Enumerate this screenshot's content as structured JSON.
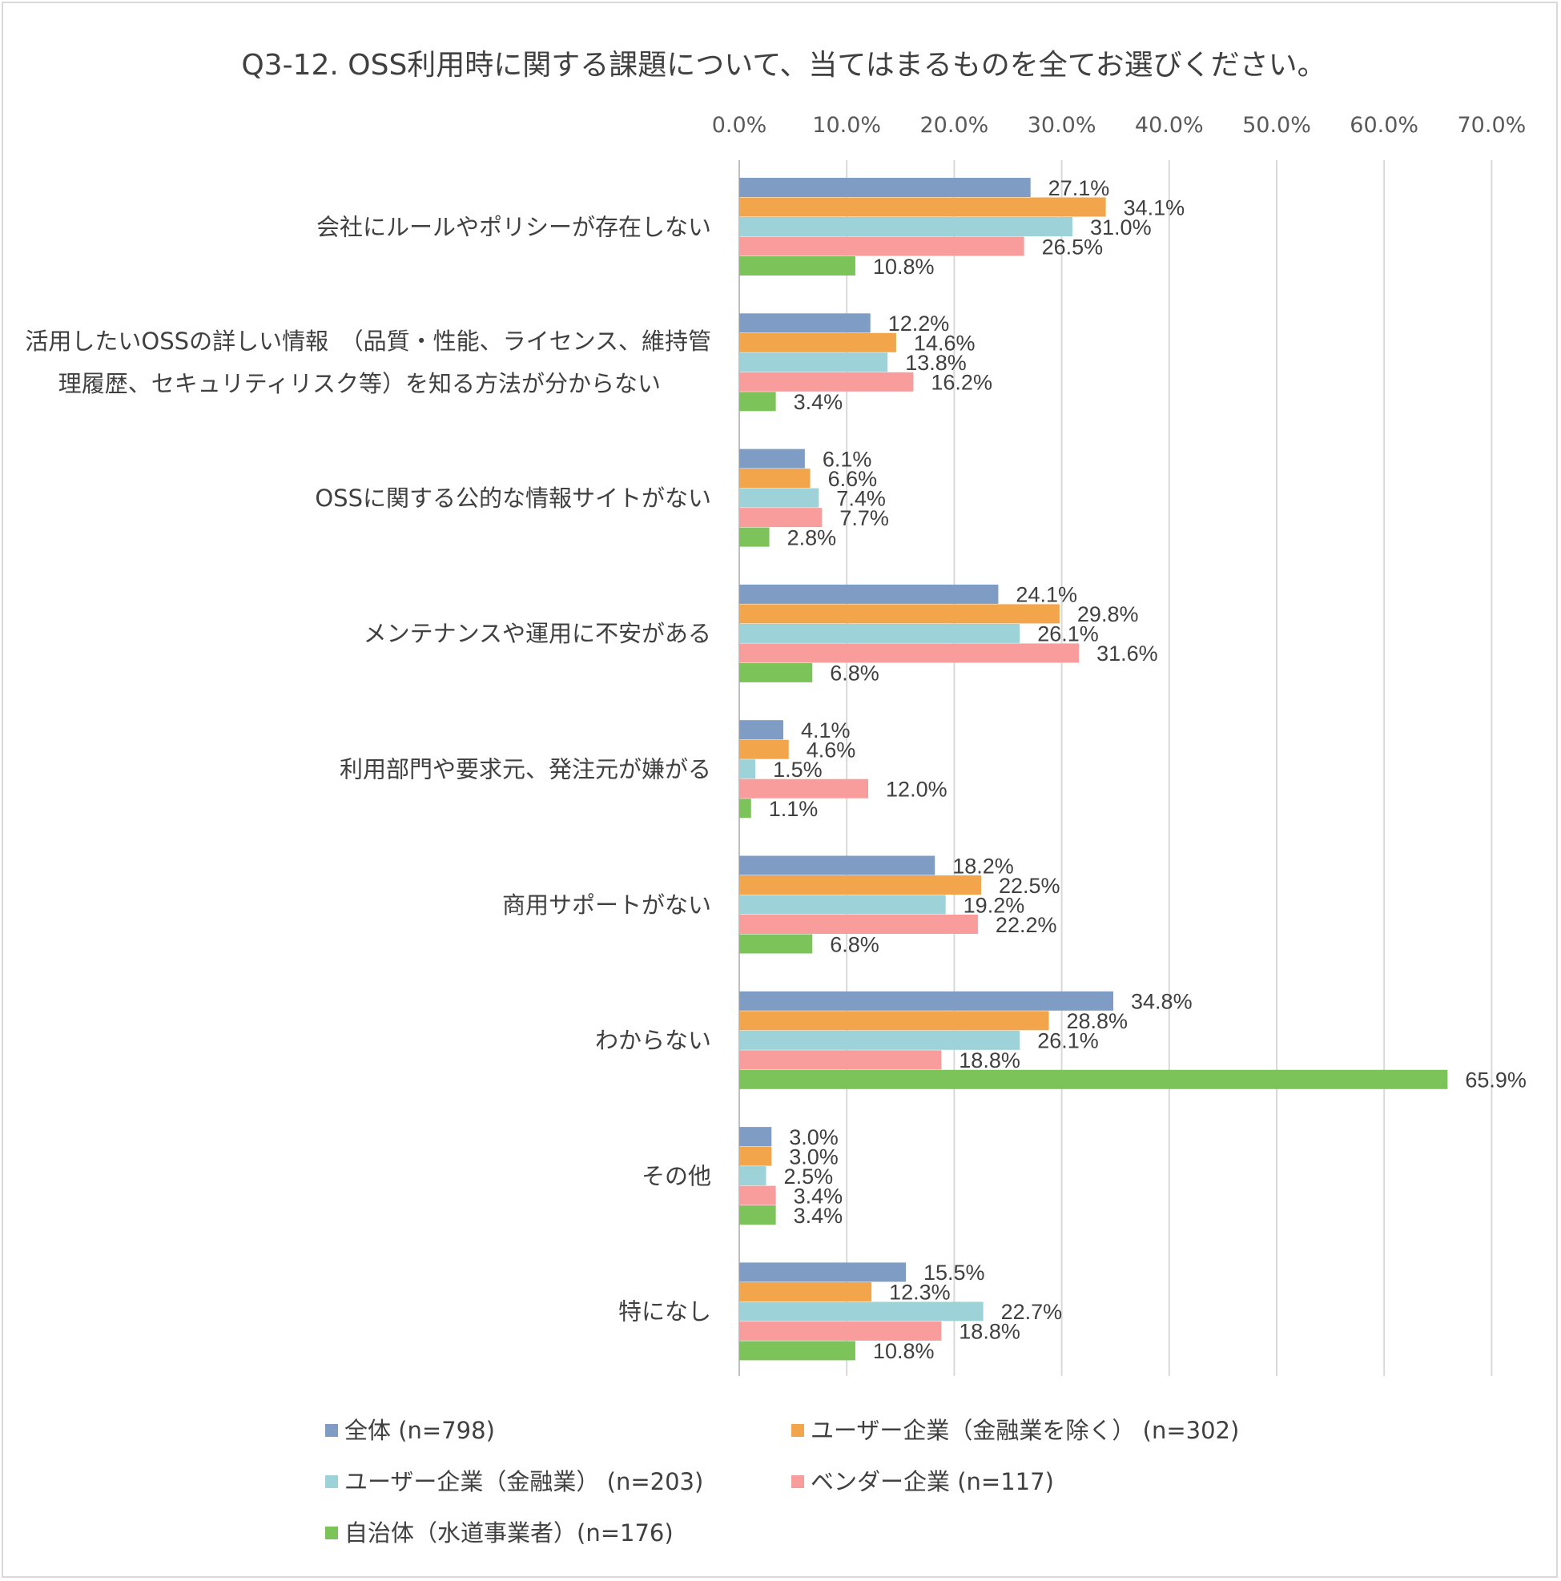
{
  "chart_data": {
    "type": "bar",
    "orientation": "horizontal",
    "title": "Q3-12. OSS利用時に関する課題について、当てはまるものを全てお選びください。",
    "x_axis": {
      "position": "top",
      "min": 0,
      "max": 70,
      "step": 10,
      "tick_labels": [
        "0.0%",
        "10.0%",
        "20.0%",
        "30.0%",
        "40.0%",
        "50.0%",
        "60.0%",
        "70.0%"
      ],
      "gridlines": true
    },
    "categories": [
      [
        "会社にルールやポリシーが存在しない"
      ],
      [
        "活用したいOSSの詳しい情報　（品質・性能、ライセンス、維持管",
        "理履歴、セキュリティリスク等）を知る方法が分からない"
      ],
      [
        "OSSに関する公的な情報サイトがない"
      ],
      [
        "メンテナンスや運用に不安がある"
      ],
      [
        "利用部門や要求元、発注元が嫌がる"
      ],
      [
        "商用サポートがない"
      ],
      [
        "わからない"
      ],
      [
        "その他"
      ],
      [
        "特になし"
      ]
    ],
    "series": [
      {
        "name": "全体 (n=798)",
        "color": "#7f9cc4",
        "values": [
          27.1,
          12.2,
          6.1,
          24.1,
          4.1,
          18.2,
          34.8,
          3.0,
          15.5
        ],
        "labels": [
          "27.1%",
          "12.2%",
          "6.1%",
          "24.1%",
          "4.1%",
          "18.2%",
          "34.8%",
          "3.0%",
          "15.5%"
        ]
      },
      {
        "name": "ユーザー企業（金融業を除く） (n=302)",
        "color": "#f2a54a",
        "values": [
          34.1,
          14.6,
          6.6,
          29.8,
          4.6,
          22.5,
          28.8,
          3.0,
          12.3
        ],
        "labels": [
          "34.1%",
          "14.6%",
          "6.6%",
          "29.8%",
          "4.6%",
          "22.5%",
          "28.8%",
          "3.0%",
          "12.3%"
        ]
      },
      {
        "name": "ユーザー企業（金融業） (n=203)",
        "color": "#9dd3d8",
        "values": [
          31.0,
          13.8,
          7.4,
          26.1,
          1.5,
          19.2,
          26.1,
          2.5,
          22.7
        ],
        "labels": [
          "31.0%",
          "13.8%",
          "7.4%",
          "26.1%",
          "1.5%",
          "19.2%",
          "26.1%",
          "2.5%",
          "22.7%"
        ]
      },
      {
        "name": "ベンダー企業 (n=117)",
        "color": "#f99c9c",
        "values": [
          26.5,
          16.2,
          7.7,
          31.6,
          12.0,
          22.2,
          18.8,
          3.4,
          18.8
        ],
        "labels": [
          "26.5%",
          "16.2%",
          "7.7%",
          "31.6%",
          "12.0%",
          "22.2%",
          "18.8%",
          "3.4%",
          "18.8%"
        ]
      },
      {
        "name": "自治体（水道事業者）(n=176)",
        "color": "#7cc45a",
        "values": [
          10.8,
          3.4,
          2.8,
          6.8,
          1.1,
          6.8,
          65.9,
          3.4,
          10.8
        ],
        "labels": [
          "10.8%",
          "3.4%",
          "2.8%",
          "6.8%",
          "1.1%",
          "6.8%",
          "65.9%",
          "3.4%",
          "10.8%"
        ]
      }
    ],
    "legend": {
      "position": "bottom",
      "columns": 2
    }
  }
}
